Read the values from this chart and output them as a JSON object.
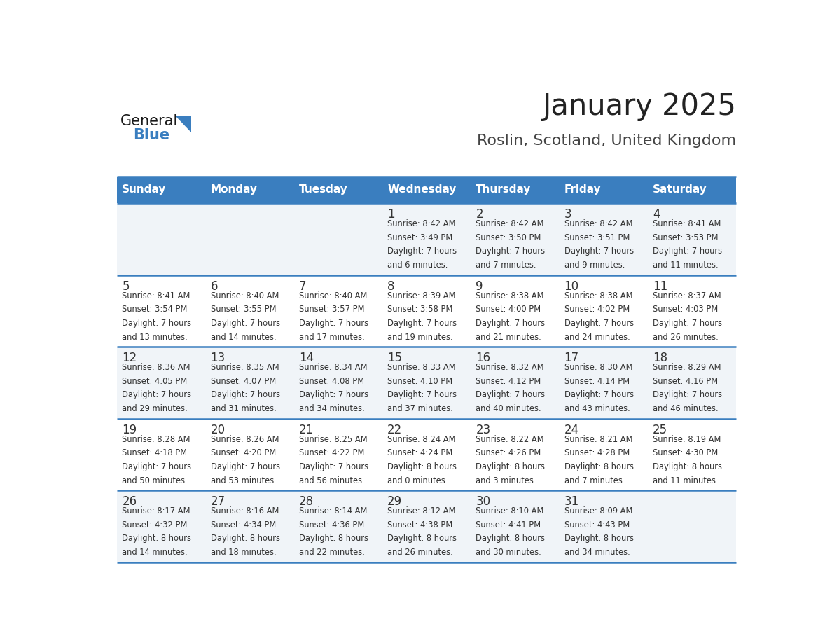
{
  "title": "January 2025",
  "subtitle": "Roslin, Scotland, United Kingdom",
  "days_of_week": [
    "Sunday",
    "Monday",
    "Tuesday",
    "Wednesday",
    "Thursday",
    "Friday",
    "Saturday"
  ],
  "header_bg": "#3a7ebf",
  "header_text": "#ffffff",
  "cell_bg_even": "#f0f4f8",
  "cell_bg_odd": "#ffffff",
  "cell_text": "#333333",
  "day_num_color": "#333333",
  "border_color": "#3a7ebf",
  "title_color": "#222222",
  "subtitle_color": "#444444",
  "calendar": [
    [
      null,
      null,
      null,
      {
        "day": 1,
        "sunrise": "8:42 AM",
        "sunset": "3:49 PM",
        "daylight": "7 hours and 6 minutes."
      },
      {
        "day": 2,
        "sunrise": "8:42 AM",
        "sunset": "3:50 PM",
        "daylight": "7 hours and 7 minutes."
      },
      {
        "day": 3,
        "sunrise": "8:42 AM",
        "sunset": "3:51 PM",
        "daylight": "7 hours and 9 minutes."
      },
      {
        "day": 4,
        "sunrise": "8:41 AM",
        "sunset": "3:53 PM",
        "daylight": "7 hours and 11 minutes."
      }
    ],
    [
      {
        "day": 5,
        "sunrise": "8:41 AM",
        "sunset": "3:54 PM",
        "daylight": "7 hours and 13 minutes."
      },
      {
        "day": 6,
        "sunrise": "8:40 AM",
        "sunset": "3:55 PM",
        "daylight": "7 hours and 14 minutes."
      },
      {
        "day": 7,
        "sunrise": "8:40 AM",
        "sunset": "3:57 PM",
        "daylight": "7 hours and 17 minutes."
      },
      {
        "day": 8,
        "sunrise": "8:39 AM",
        "sunset": "3:58 PM",
        "daylight": "7 hours and 19 minutes."
      },
      {
        "day": 9,
        "sunrise": "8:38 AM",
        "sunset": "4:00 PM",
        "daylight": "7 hours and 21 minutes."
      },
      {
        "day": 10,
        "sunrise": "8:38 AM",
        "sunset": "4:02 PM",
        "daylight": "7 hours and 24 minutes."
      },
      {
        "day": 11,
        "sunrise": "8:37 AM",
        "sunset": "4:03 PM",
        "daylight": "7 hours and 26 minutes."
      }
    ],
    [
      {
        "day": 12,
        "sunrise": "8:36 AM",
        "sunset": "4:05 PM",
        "daylight": "7 hours and 29 minutes."
      },
      {
        "day": 13,
        "sunrise": "8:35 AM",
        "sunset": "4:07 PM",
        "daylight": "7 hours and 31 minutes."
      },
      {
        "day": 14,
        "sunrise": "8:34 AM",
        "sunset": "4:08 PM",
        "daylight": "7 hours and 34 minutes."
      },
      {
        "day": 15,
        "sunrise": "8:33 AM",
        "sunset": "4:10 PM",
        "daylight": "7 hours and 37 minutes."
      },
      {
        "day": 16,
        "sunrise": "8:32 AM",
        "sunset": "4:12 PM",
        "daylight": "7 hours and 40 minutes."
      },
      {
        "day": 17,
        "sunrise": "8:30 AM",
        "sunset": "4:14 PM",
        "daylight": "7 hours and 43 minutes."
      },
      {
        "day": 18,
        "sunrise": "8:29 AM",
        "sunset": "4:16 PM",
        "daylight": "7 hours and 46 minutes."
      }
    ],
    [
      {
        "day": 19,
        "sunrise": "8:28 AM",
        "sunset": "4:18 PM",
        "daylight": "7 hours and 50 minutes."
      },
      {
        "day": 20,
        "sunrise": "8:26 AM",
        "sunset": "4:20 PM",
        "daylight": "7 hours and 53 minutes."
      },
      {
        "day": 21,
        "sunrise": "8:25 AM",
        "sunset": "4:22 PM",
        "daylight": "7 hours and 56 minutes."
      },
      {
        "day": 22,
        "sunrise": "8:24 AM",
        "sunset": "4:24 PM",
        "daylight": "8 hours and 0 minutes."
      },
      {
        "day": 23,
        "sunrise": "8:22 AM",
        "sunset": "4:26 PM",
        "daylight": "8 hours and 3 minutes."
      },
      {
        "day": 24,
        "sunrise": "8:21 AM",
        "sunset": "4:28 PM",
        "daylight": "8 hours and 7 minutes."
      },
      {
        "day": 25,
        "sunrise": "8:19 AM",
        "sunset": "4:30 PM",
        "daylight": "8 hours and 11 minutes."
      }
    ],
    [
      {
        "day": 26,
        "sunrise": "8:17 AM",
        "sunset": "4:32 PM",
        "daylight": "8 hours and 14 minutes."
      },
      {
        "day": 27,
        "sunrise": "8:16 AM",
        "sunset": "4:34 PM",
        "daylight": "8 hours and 18 minutes."
      },
      {
        "day": 28,
        "sunrise": "8:14 AM",
        "sunset": "4:36 PM",
        "daylight": "8 hours and 22 minutes."
      },
      {
        "day": 29,
        "sunrise": "8:12 AM",
        "sunset": "4:38 PM",
        "daylight": "8 hours and 26 minutes."
      },
      {
        "day": 30,
        "sunrise": "8:10 AM",
        "sunset": "4:41 PM",
        "daylight": "8 hours and 30 minutes."
      },
      {
        "day": 31,
        "sunrise": "8:09 AM",
        "sunset": "4:43 PM",
        "daylight": "8 hours and 34 minutes."
      },
      null
    ]
  ],
  "logo_text_general": "General",
  "logo_text_blue": "Blue",
  "logo_triangle_color": "#3a7ebf",
  "logo_general_color": "#1a1a1a"
}
